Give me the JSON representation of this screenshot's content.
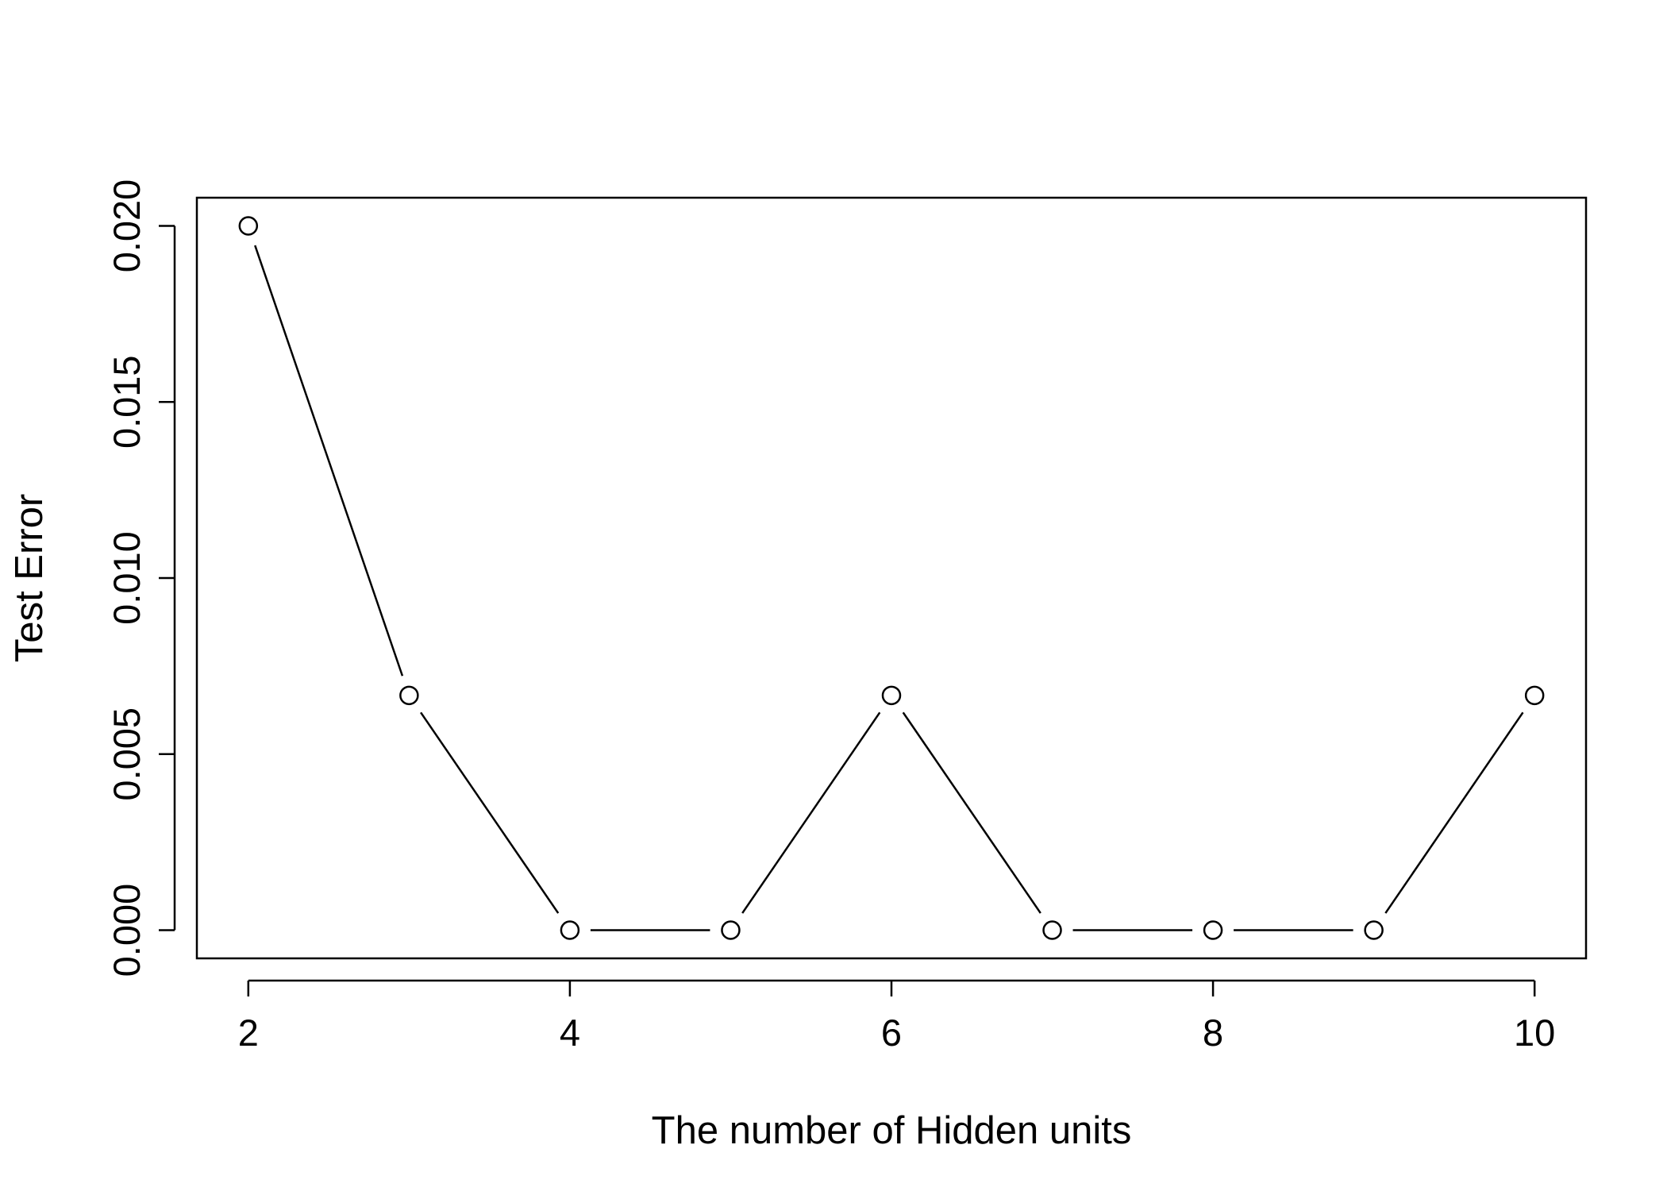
{
  "chart_data": {
    "type": "line",
    "title": "",
    "xlabel": "The number of Hidden units",
    "ylabel": "Test Error",
    "x": [
      2,
      3,
      4,
      5,
      6,
      7,
      8,
      9,
      10
    ],
    "series": [
      {
        "values": [
          0.02,
          0.006667,
          0.0,
          0.0,
          0.006667,
          0.0,
          0.0,
          0.0,
          0.006667
        ]
      }
    ],
    "xticks": [
      2,
      4,
      6,
      8,
      10
    ],
    "xtick_labels": [
      "2",
      "4",
      "6",
      "8",
      "10"
    ],
    "yticks": [
      0.0,
      0.005,
      0.01,
      0.015,
      0.02
    ],
    "ytick_labels": [
      "0.000",
      "0.005",
      "0.010",
      "0.015",
      "0.020"
    ],
    "xlim": [
      1.68,
      10.32
    ],
    "ylim": [
      -0.0008,
      0.0208
    ],
    "marker": "open-circle",
    "grid": false,
    "legend": "none",
    "line_color": "#000000"
  }
}
